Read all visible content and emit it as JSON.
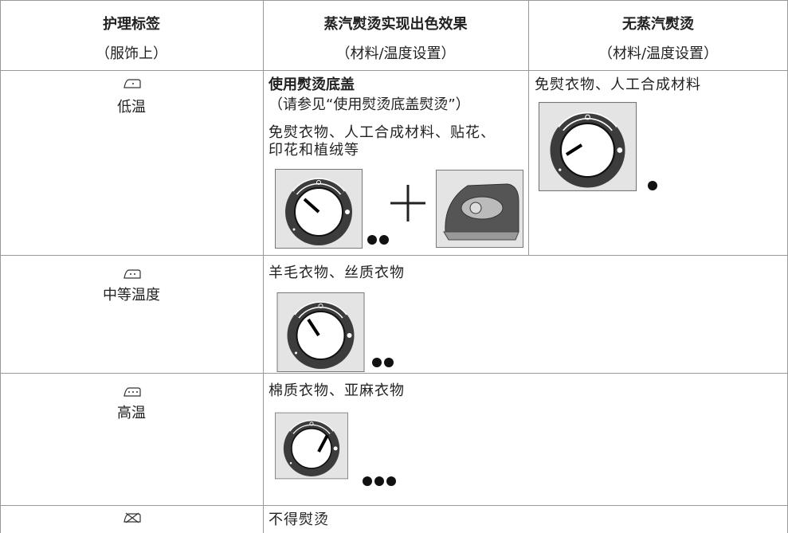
{
  "table": {
    "header": [
      [
        "护理标签",
        "（服饰上）"
      ],
      [
        "蒸汽熨烫实现出色效果",
        "（材料/温度设置）"
      ],
      [
        "无蒸汽熨烫",
        "（材料/温度设置）"
      ]
    ],
    "rows": [
      {
        "label": "低温",
        "steam": {
          "title": "使用熨烫底盖",
          "note": "（请参见“使用熨烫底盖熨烫”）",
          "text": "免熨衣物、人工合成材料、贴花、印花和植绒等"
        },
        "dry": "免熨衣物、人工合成材料"
      },
      {
        "label": "中等温度",
        "steam": {
          "text": "羊毛衣物、丝质衣物"
        }
      },
      {
        "label": "高温",
        "steam": {
          "text": "棉质衣物、亚麻衣物"
        }
      },
      {
        "steam": {
          "text": "不得熨烫"
        }
      }
    ]
  }
}
